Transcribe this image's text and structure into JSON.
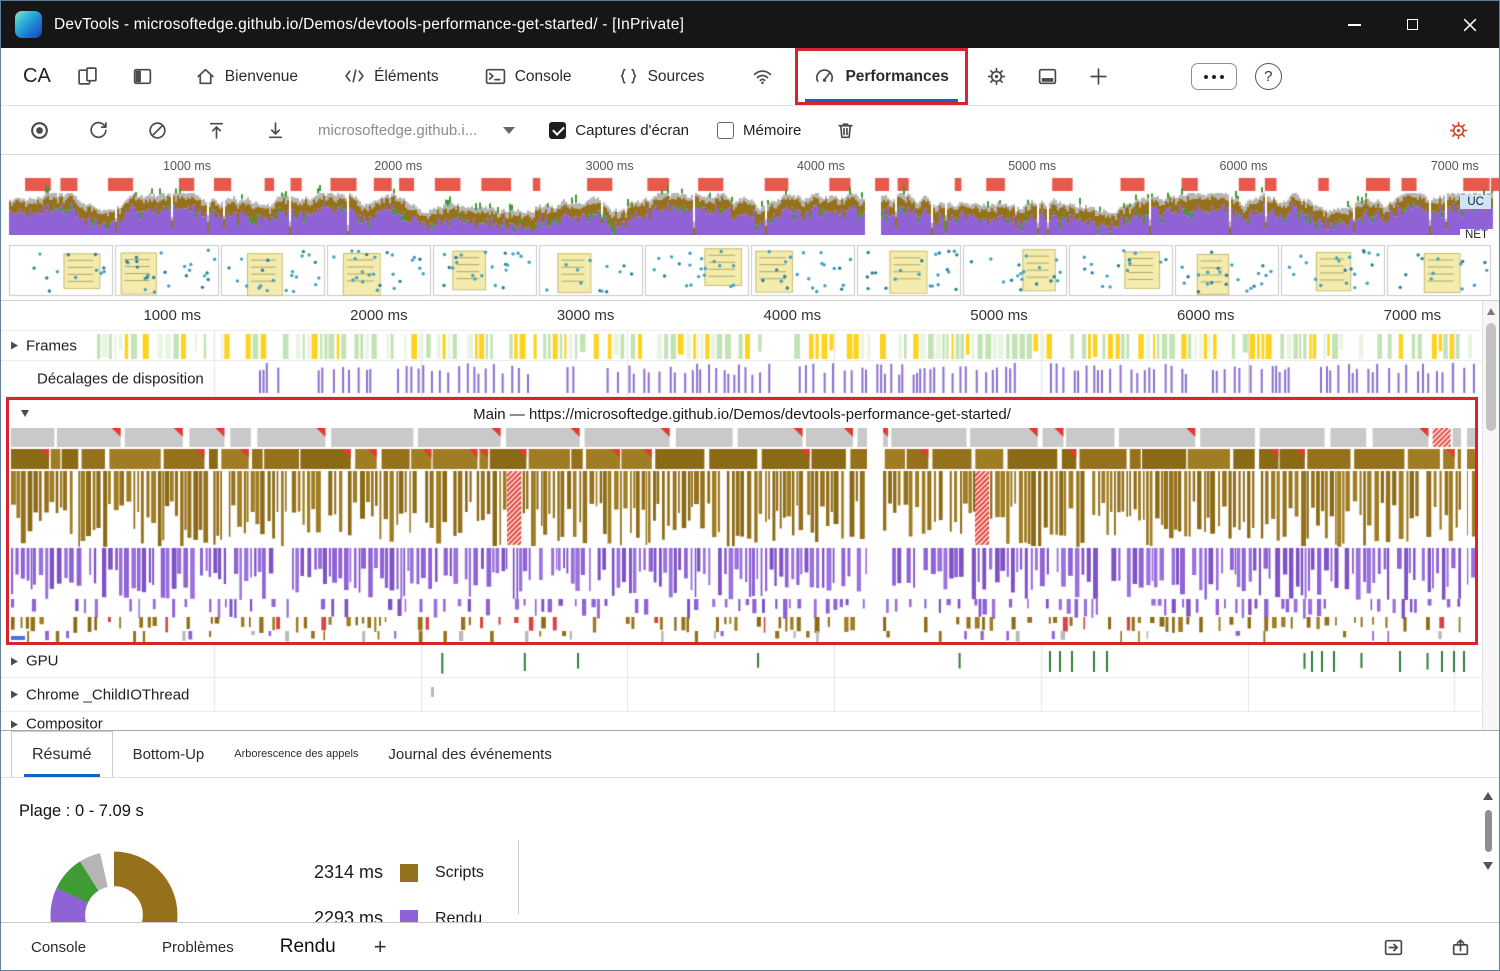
{
  "window": {
    "title": "DevTools - microsoftedge.github.io/Demos/devtools-performance-get-started/ - [InPrivate]"
  },
  "tabbar": {
    "ca_label": "CA",
    "tabs": {
      "bienvenue": "Bienvenue",
      "elements": "Éléments",
      "console": "Console",
      "sources": "Sources",
      "performances": "Performances"
    }
  },
  "icons": {
    "help_glyph": "?"
  },
  "toolbar": {
    "url_select": "microsoftedge.github.i...",
    "screenshots_label": "Captures d'écran",
    "memory_label": "Mémoire"
  },
  "overview": {
    "ruler_labels": [
      "1000 ms",
      "2000 ms",
      "3000 ms",
      "4000 ms",
      "5000 ms",
      "6000 ms",
      "7000 ms"
    ],
    "uc_label": "UC",
    "net_label": "NET"
  },
  "timeline": {
    "ruler_labels": [
      "1000 ms",
      "2000 ms",
      "3000 ms",
      "4000 ms",
      "5000 ms",
      "6000 ms",
      "7000 ms"
    ],
    "frames_label": "Frames",
    "layout_shifts_label": "Décalages de disposition",
    "main_title": "Main — https://microsoftedge.github.io/Demos/devtools-performance-get-started/",
    "gpu_label": "GPU",
    "chrome_thread_label": "Chrome _ChildIOThread",
    "compositor_label": "Compositor"
  },
  "drawer": {
    "tabs": {
      "resume": "Résumé",
      "bottom_up": "Bottom-Up",
      "call_tree": "Arborescence des appels",
      "event_log": "Journal des événements"
    },
    "range_label": "Plage : 0 - 7.09 s",
    "legend": [
      {
        "value": "2314 ms",
        "label": "Scripts"
      },
      {
        "value": "2293 ms",
        "label": "Rendu"
      }
    ]
  },
  "statusbar": {
    "console_label": "Console",
    "problems_label": "Problèmes",
    "rendu_label": "Rendu",
    "add_label": "+"
  },
  "colors": {
    "accent_blue": "#1464c8",
    "annotation_red": "#d8242f",
    "long_task_red": "#e8584b",
    "task_gray": "#c9c9c9",
    "script_olive": "#96711c",
    "render_purple": "#8f62d6",
    "paint_green": "#3f9c35",
    "system_gray": "#b5b5b5",
    "frame_green": "#c2e3b4",
    "frame_yellow": "#ffd21c",
    "shift_purple": "#8c6fd0",
    "film_note": "#f3ecae",
    "film_dot": "#3fa0c2",
    "gear_red": "#d2482c",
    "gpu_green": "#2e7d32"
  }
}
